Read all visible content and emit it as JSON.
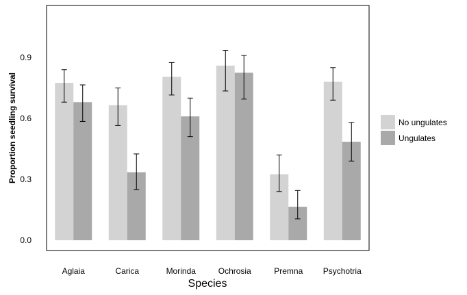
{
  "chart_data": {
    "type": "bar",
    "title": "",
    "xlabel": "Species",
    "ylabel": "Proportion seedling survival",
    "categories": [
      "Aglaia",
      "Carica",
      "Morinda",
      "Ochrosia",
      "Premna",
      "Psychotria"
    ],
    "ylim": [
      0,
      1.2
    ],
    "yticks": [
      "0.0",
      "0.3",
      "0.6",
      "0.9"
    ],
    "grid": false,
    "legend_position": "right",
    "series": [
      {
        "name": "No ungulates",
        "color": "#d3d3d3",
        "values": [
          0.775,
          0.665,
          0.805,
          0.86,
          0.325,
          0.78
        ],
        "err_low": [
          0.68,
          0.565,
          0.715,
          0.735,
          0.24,
          0.69
        ],
        "err_high": [
          0.84,
          0.75,
          0.875,
          0.935,
          0.42,
          0.85
        ]
      },
      {
        "name": "Ungulates",
        "color": "#a9a9a9",
        "values": [
          0.68,
          0.335,
          0.61,
          0.825,
          0.165,
          0.485
        ],
        "err_low": [
          0.585,
          0.25,
          0.51,
          0.695,
          0.105,
          0.39
        ],
        "err_high": [
          0.765,
          0.425,
          0.7,
          0.91,
          0.245,
          0.58
        ]
      }
    ]
  }
}
